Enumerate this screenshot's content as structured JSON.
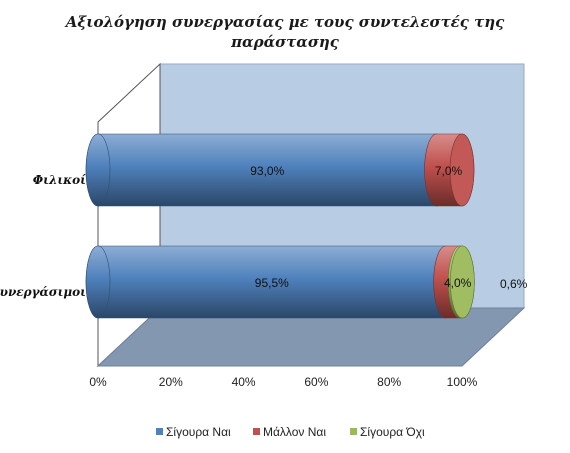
{
  "chart_data": {
    "type": "bar",
    "orientation": "horizontal",
    "stacked": true,
    "percent_stacked": true,
    "style": "3d-cylinder",
    "title_line1": "Αξιολόγηση συνεργασίας με τους συντελεστές της",
    "title_line2": "παράστασης",
    "categories": [
      "Φιλικοί",
      "Συνεργάσιμοι"
    ],
    "series": [
      {
        "name": "Σίγουρα Ναι",
        "color": "#4F81BD",
        "values": [
          93.0,
          95.5
        ],
        "labels": [
          "93,0%",
          "95,5%"
        ]
      },
      {
        "name": "Μάλλον Ναι",
        "color": "#C0504D",
        "values": [
          7.0,
          4.0
        ],
        "labels": [
          "7,0%",
          "4,0%"
        ]
      },
      {
        "name": "Σίγουρα Όχι",
        "color": "#9BBB59",
        "values": [
          0.0,
          0.6
        ],
        "labels": [
          "",
          "0,6%"
        ]
      }
    ],
    "xlim": [
      0,
      100
    ],
    "x_ticks": [
      "0%",
      "20%",
      "40%",
      "60%",
      "80%",
      "100%"
    ],
    "legend_position": "bottom",
    "wall_color": "#B8CCE4",
    "floor_color": "#8497B0"
  }
}
